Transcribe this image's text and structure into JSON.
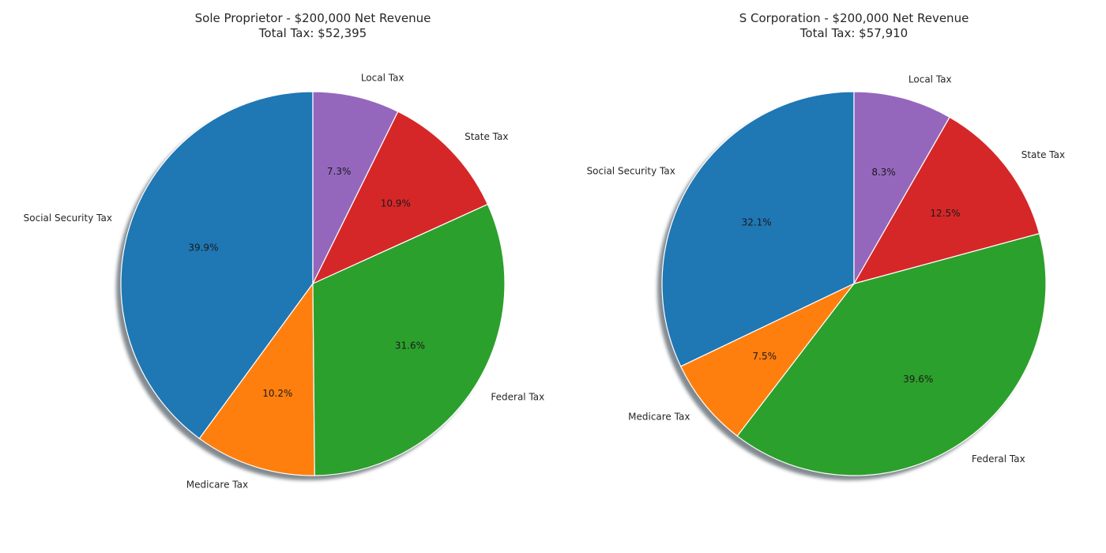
{
  "chart_data": [
    {
      "type": "pie",
      "title": "Sole Proprietor - $200,000 Net Revenue",
      "subtitle": "Total Tax: $52,395",
      "start_angle": 90,
      "direction": "counterclockwise",
      "shadow": true,
      "slices": [
        {
          "label": "Social Security Tax",
          "value": 39.9,
          "pct_label": "39.9%",
          "color": "#1f77b4"
        },
        {
          "label": "Medicare Tax",
          "value": 10.2,
          "pct_label": "10.2%",
          "color": "#ff7f0e"
        },
        {
          "label": "Federal Tax",
          "value": 31.6,
          "pct_label": "31.6%",
          "color": "#2ca02c"
        },
        {
          "label": "State Tax",
          "value": 10.9,
          "pct_label": "10.9%",
          "color": "#d62728"
        },
        {
          "label": "Local Tax",
          "value": 7.3,
          "pct_label": "7.3%",
          "color": "#9467bd"
        }
      ]
    },
    {
      "type": "pie",
      "title": "S Corporation - $200,000 Net Revenue",
      "subtitle": "Total Tax: $57,910",
      "start_angle": 90,
      "direction": "counterclockwise",
      "shadow": true,
      "slices": [
        {
          "label": "Social Security Tax",
          "value": 32.1,
          "pct_label": "32.1%",
          "color": "#1f77b4"
        },
        {
          "label": "Medicare Tax",
          "value": 7.5,
          "pct_label": "7.5%",
          "color": "#ff7f0e"
        },
        {
          "label": "Federal Tax",
          "value": 39.6,
          "pct_label": "39.6%",
          "color": "#2ca02c"
        },
        {
          "label": "State Tax",
          "value": 12.5,
          "pct_label": "12.5%",
          "color": "#d62728"
        },
        {
          "label": "Local Tax",
          "value": 8.3,
          "pct_label": "8.3%",
          "color": "#9467bd"
        }
      ]
    }
  ]
}
